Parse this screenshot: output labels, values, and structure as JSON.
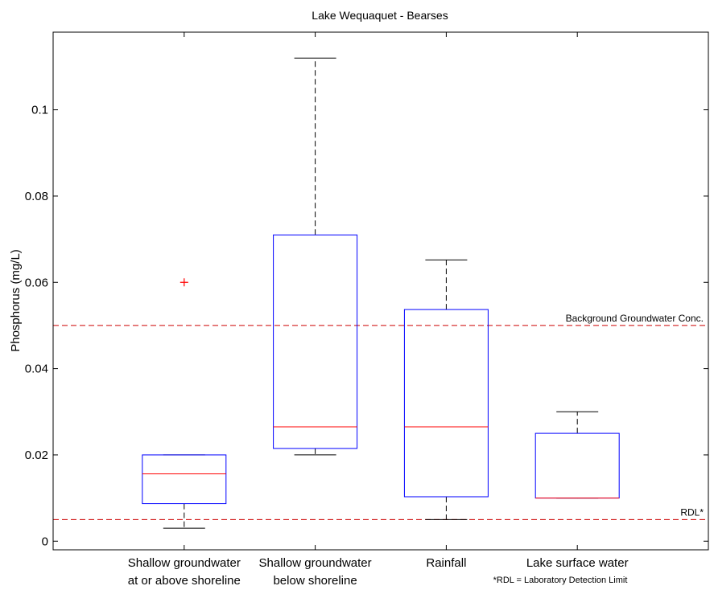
{
  "chart_data": {
    "type": "box",
    "title": "Lake Wequaquet - Bearses",
    "xlabel": "",
    "ylabel": "Phosphorus (mg/L)",
    "ylim": [
      -0.002,
      0.118
    ],
    "yticks": [
      0,
      0.02,
      0.04,
      0.06,
      0.08,
      0.1
    ],
    "ytick_labels": [
      "0",
      "0.02",
      "0.04",
      "0.06",
      "0.08",
      "0.1"
    ],
    "grid": false,
    "categories": [
      [
        "Shallow groundwater",
        "at or above shoreline"
      ],
      [
        "Shallow groundwater",
        "below shoreline"
      ],
      [
        "Rainfall"
      ],
      [
        "Lake surface water"
      ]
    ],
    "boxes": [
      {
        "whisker_low": 0.003,
        "q1": 0.0087,
        "median": 0.0156,
        "q3": 0.02,
        "whisker_high": 0.02,
        "outliers": [
          0.06
        ]
      },
      {
        "whisker_low": 0.02,
        "q1": 0.0215,
        "median": 0.0265,
        "q3": 0.071,
        "whisker_high": 0.112,
        "outliers": []
      },
      {
        "whisker_low": 0.005,
        "q1": 0.0103,
        "median": 0.0265,
        "q3": 0.0537,
        "whisker_high": 0.0652,
        "outliers": []
      },
      {
        "whisker_low": 0.01,
        "q1": 0.01,
        "median": 0.01,
        "q3": 0.025,
        "whisker_high": 0.03,
        "outliers": []
      }
    ],
    "reference_lines": [
      {
        "value": 0.05,
        "label": "Background Groundwater Conc."
      },
      {
        "value": 0.005,
        "label": "RDL*"
      }
    ],
    "footnote": "*RDL = Laboratory Detection Limit",
    "colors": {
      "box": "#0000ff",
      "median": "#ff0000",
      "whisker": "#000000",
      "outlier": "#ff0000",
      "reference": "#cc0000"
    }
  }
}
